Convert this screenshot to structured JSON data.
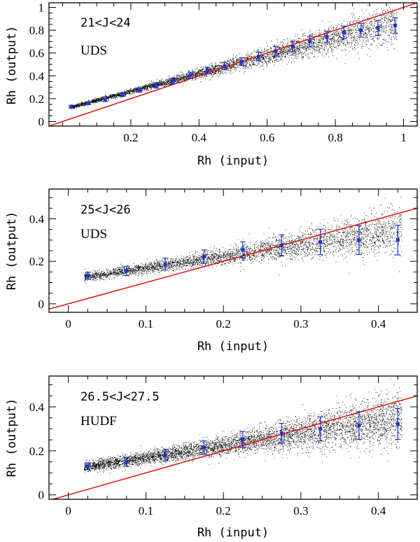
{
  "colors": {
    "scatter": "#000000",
    "reference_line": "#e01010",
    "binned_points": "#2233cc"
  },
  "chart_data": [
    {
      "type": "scatter",
      "annotation_range": "21<J<24",
      "annotation_field": "UDS",
      "xlabel": "Rh (input)",
      "ylabel": "Rh (output)",
      "xlim": [
        -0.04,
        1.04
      ],
      "ylim": [
        -0.04,
        1.04
      ],
      "xticks": [
        0.2,
        0.4,
        0.6,
        0.8,
        1
      ],
      "xtick_labels": [
        "0.2",
        "0.4",
        "0.6",
        "0.8",
        "1"
      ],
      "yticks": [
        0,
        0.2,
        0.4,
        0.6,
        0.8,
        1
      ],
      "ytick_labels": [
        "0",
        "0.2",
        "0.4",
        "0.6",
        "0.8",
        "1"
      ],
      "reference_line": "y = x",
      "scatter_trend": {
        "x_range": [
          0.02,
          0.98
        ],
        "intercept": 0.11,
        "slope": 0.78,
        "spread_base": 0.004,
        "spread_slope": 0.09,
        "n": 4500
      },
      "binned": {
        "x": [
          0.025,
          0.075,
          0.125,
          0.175,
          0.225,
          0.275,
          0.325,
          0.375,
          0.425,
          0.475,
          0.525,
          0.575,
          0.625,
          0.675,
          0.725,
          0.775,
          0.825,
          0.875,
          0.925,
          0.975
        ],
        "y": [
          0.13,
          0.16,
          0.19,
          0.235,
          0.275,
          0.315,
          0.355,
          0.405,
          0.445,
          0.485,
          0.525,
          0.57,
          0.615,
          0.655,
          0.7,
          0.74,
          0.78,
          0.8,
          0.82,
          0.84
        ],
        "yerr": [
          0.012,
          0.012,
          0.015,
          0.017,
          0.019,
          0.022,
          0.024,
          0.026,
          0.028,
          0.03,
          0.034,
          0.036,
          0.04,
          0.043,
          0.046,
          0.05,
          0.055,
          0.06,
          0.065,
          0.07
        ]
      }
    },
    {
      "type": "scatter",
      "annotation_range": "25<J<26",
      "annotation_field": "UDS",
      "xlabel": "Rh (input)",
      "ylabel": "Rh (output)",
      "xlim": [
        -0.025,
        0.45
      ],
      "ylim": [
        -0.04,
        0.54
      ],
      "xticks": [
        0,
        0.1,
        0.2,
        0.3,
        0.4
      ],
      "xtick_labels": [
        "0",
        "0.1",
        "0.2",
        "0.3",
        "0.4"
      ],
      "yticks": [
        0,
        0.2,
        0.4
      ],
      "ytick_labels": [
        "0",
        "0.2",
        "0.4"
      ],
      "reference_line": "y = x",
      "scatter_trend": {
        "x_range": [
          0.02,
          0.43
        ],
        "intercept": 0.115,
        "slope": 0.55,
        "spread_base": 0.006,
        "spread_slope": 0.25,
        "n": 4000
      },
      "binned": {
        "x": [
          0.025,
          0.075,
          0.125,
          0.175,
          0.225,
          0.275,
          0.325,
          0.375,
          0.425
        ],
        "y": [
          0.132,
          0.155,
          0.187,
          0.222,
          0.254,
          0.275,
          0.291,
          0.3,
          0.3
        ],
        "yerr": [
          0.016,
          0.022,
          0.028,
          0.032,
          0.038,
          0.05,
          0.06,
          0.068,
          0.07
        ]
      }
    },
    {
      "type": "scatter",
      "annotation_range": "26.5<J<27.5",
      "annotation_field": "HUDF",
      "xlabel": "Rh (input)",
      "ylabel": "Rh (output)",
      "xlim": [
        -0.025,
        0.45
      ],
      "ylim": [
        -0.02,
        0.54
      ],
      "xticks": [
        0,
        0.1,
        0.2,
        0.3,
        0.4
      ],
      "xtick_labels": [
        "0",
        "0.1",
        "0.2",
        "0.3",
        "0.4"
      ],
      "yticks": [
        0,
        0.2,
        0.4
      ],
      "ytick_labels": [
        "0",
        "0.2",
        "0.4"
      ],
      "reference_line": "y = x",
      "scatter_trend": {
        "x_range": [
          0.02,
          0.43
        ],
        "intercept": 0.115,
        "slope": 0.55,
        "spread_base": 0.008,
        "spread_slope": 0.28,
        "n": 5500
      },
      "binned": {
        "x": [
          0.025,
          0.075,
          0.125,
          0.175,
          0.225,
          0.275,
          0.325,
          0.375,
          0.425
        ],
        "y": [
          0.13,
          0.15,
          0.18,
          0.215,
          0.252,
          0.28,
          0.3,
          0.315,
          0.322
        ],
        "yerr": [
          0.015,
          0.02,
          0.026,
          0.03,
          0.036,
          0.045,
          0.055,
          0.063,
          0.07
        ]
      }
    }
  ]
}
